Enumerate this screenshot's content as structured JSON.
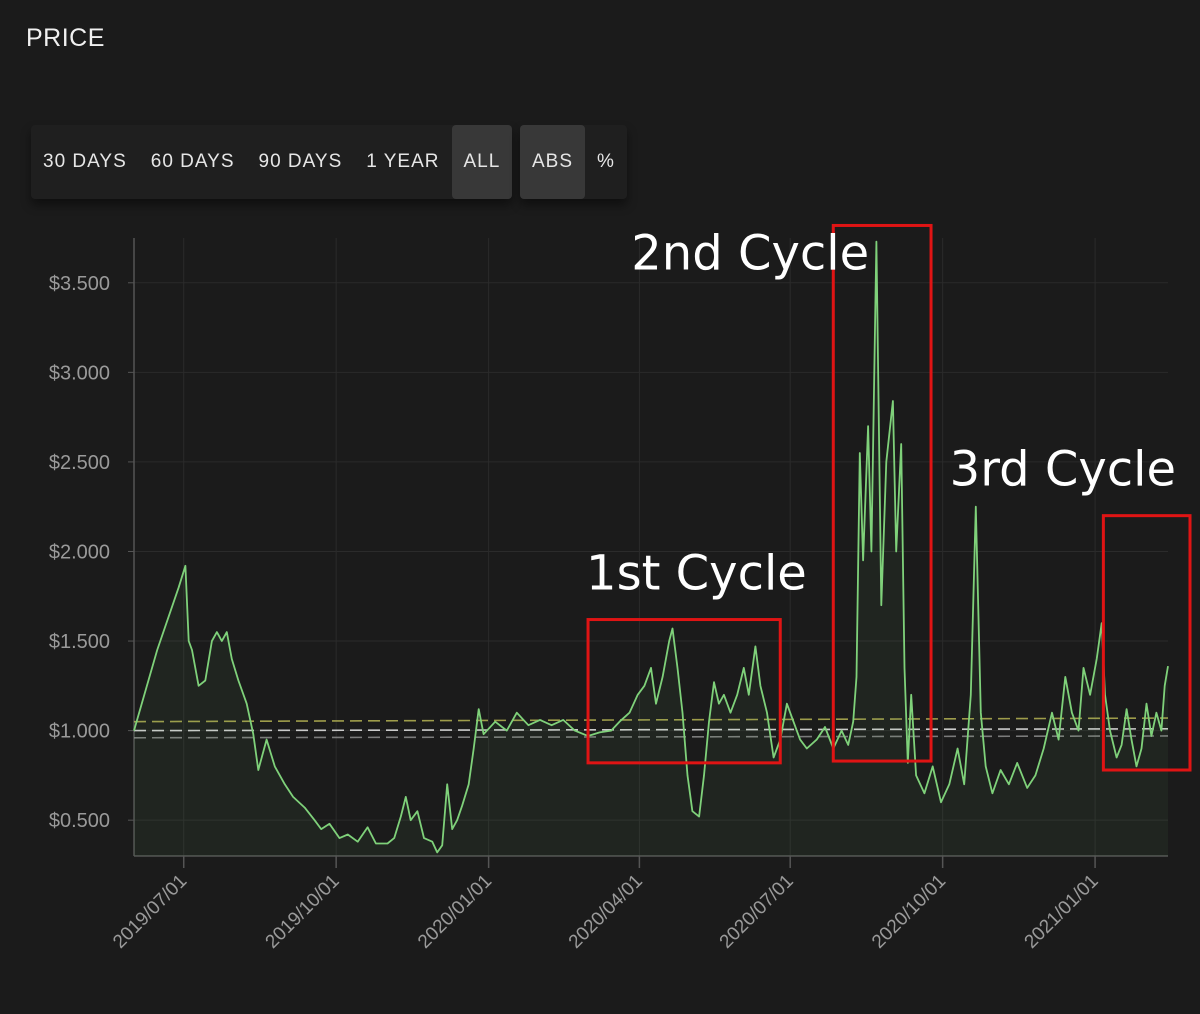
{
  "page": {
    "title": "PRICE"
  },
  "range_buttons": [
    {
      "label": "30 DAYS",
      "active": false
    },
    {
      "label": "60 DAYS",
      "active": false
    },
    {
      "label": "90 DAYS",
      "active": false
    },
    {
      "label": "1 YEAR",
      "active": false
    },
    {
      "label": "ALL",
      "active": true
    }
  ],
  "mode_buttons": [
    {
      "label": "ABS",
      "active": true
    },
    {
      "label": "%",
      "active": false
    }
  ],
  "colors": {
    "background": "#1b1b1b",
    "series": "#7fd17a",
    "annotation_box": "#e01414",
    "grid": "#2b2b2b",
    "axis": "#555555",
    "tick_text": "#9a9a9a",
    "ref_yellow": "#b5b353",
    "ref_white": "#e8e8e8",
    "ref_grey": "#8c8c8c"
  },
  "chart_data": {
    "type": "line",
    "title": "",
    "xlabel": "",
    "ylabel": "",
    "x_start": "2019-06-01",
    "x_end": "2021-02-14",
    "ylim": [
      0.3,
      3.75
    ],
    "y_ticks": [
      0.5,
      1.0,
      1.5,
      2.0,
      2.5,
      3.0,
      3.5
    ],
    "y_tick_labels": [
      "$0.500",
      "$1.000",
      "$1.500",
      "$2.000",
      "$2.500",
      "$3.000",
      "$3.500"
    ],
    "x_ticks": [
      "2019-07-01",
      "2019-10-01",
      "2020-01-01",
      "2020-04-01",
      "2020-07-01",
      "2020-10-01",
      "2021-01-01"
    ],
    "x_tick_labels": [
      "2019/07/01",
      "2019/10/01",
      "2020/01/01",
      "2020/04/01",
      "2020/07/01",
      "2020/10/01",
      "2021/01/01"
    ],
    "grid": true,
    "series": [
      {
        "points": [
          [
            "2019-06-01",
            1.0
          ],
          [
            "2019-06-15",
            1.45
          ],
          [
            "2019-06-28",
            1.8
          ],
          [
            "2019-07-02",
            1.92
          ],
          [
            "2019-07-04",
            1.5
          ],
          [
            "2019-07-06",
            1.45
          ],
          [
            "2019-07-10",
            1.25
          ],
          [
            "2019-07-14",
            1.28
          ],
          [
            "2019-07-18",
            1.5
          ],
          [
            "2019-07-21",
            1.55
          ],
          [
            "2019-07-24",
            1.5
          ],
          [
            "2019-07-27",
            1.55
          ],
          [
            "2019-07-30",
            1.4
          ],
          [
            "2019-08-03",
            1.28
          ],
          [
            "2019-08-08",
            1.15
          ],
          [
            "2019-08-12",
            0.98
          ],
          [
            "2019-08-15",
            0.78
          ],
          [
            "2019-08-20",
            0.95
          ],
          [
            "2019-08-25",
            0.8
          ],
          [
            "2019-08-31",
            0.7
          ],
          [
            "2019-09-05",
            0.63
          ],
          [
            "2019-09-12",
            0.57
          ],
          [
            "2019-09-18",
            0.5
          ],
          [
            "2019-09-22",
            0.45
          ],
          [
            "2019-09-27",
            0.48
          ],
          [
            "2019-10-03",
            0.4
          ],
          [
            "2019-10-08",
            0.42
          ],
          [
            "2019-10-14",
            0.38
          ],
          [
            "2019-10-20",
            0.46
          ],
          [
            "2019-10-25",
            0.37
          ],
          [
            "2019-11-01",
            0.37
          ],
          [
            "2019-11-05",
            0.4
          ],
          [
            "2019-11-09",
            0.52
          ],
          [
            "2019-11-12",
            0.63
          ],
          [
            "2019-11-15",
            0.5
          ],
          [
            "2019-11-19",
            0.55
          ],
          [
            "2019-11-23",
            0.4
          ],
          [
            "2019-11-28",
            0.38
          ],
          [
            "2019-12-01",
            0.32
          ],
          [
            "2019-12-04",
            0.36
          ],
          [
            "2019-12-07",
            0.7
          ],
          [
            "2019-12-10",
            0.45
          ],
          [
            "2019-12-13",
            0.5
          ],
          [
            "2019-12-16",
            0.58
          ],
          [
            "2019-12-20",
            0.7
          ],
          [
            "2019-12-23",
            0.9
          ],
          [
            "2019-12-26",
            1.12
          ],
          [
            "2019-12-29",
            0.98
          ],
          [
            "2020-01-05",
            1.05
          ],
          [
            "2020-01-12",
            1.0
          ],
          [
            "2020-01-18",
            1.1
          ],
          [
            "2020-01-25",
            1.03
          ],
          [
            "2020-02-01",
            1.06
          ],
          [
            "2020-02-08",
            1.03
          ],
          [
            "2020-02-15",
            1.06
          ],
          [
            "2020-02-22",
            1.0
          ],
          [
            "2020-03-01",
            0.97
          ],
          [
            "2020-03-08",
            0.99
          ],
          [
            "2020-03-15",
            1.0
          ],
          [
            "2020-03-20",
            1.05
          ],
          [
            "2020-03-26",
            1.1
          ],
          [
            "2020-03-31",
            1.2
          ],
          [
            "2020-04-04",
            1.25
          ],
          [
            "2020-04-08",
            1.35
          ],
          [
            "2020-04-11",
            1.15
          ],
          [
            "2020-04-15",
            1.3
          ],
          [
            "2020-04-19",
            1.5
          ],
          [
            "2020-04-21",
            1.57
          ],
          [
            "2020-04-24",
            1.35
          ],
          [
            "2020-04-27",
            1.1
          ],
          [
            "2020-04-30",
            0.75
          ],
          [
            "2020-05-03",
            0.55
          ],
          [
            "2020-05-07",
            0.52
          ],
          [
            "2020-05-10",
            0.75
          ],
          [
            "2020-05-13",
            1.05
          ],
          [
            "2020-05-16",
            1.27
          ],
          [
            "2020-05-19",
            1.15
          ],
          [
            "2020-05-22",
            1.2
          ],
          [
            "2020-05-26",
            1.1
          ],
          [
            "2020-05-30",
            1.2
          ],
          [
            "2020-06-03",
            1.35
          ],
          [
            "2020-06-06",
            1.2
          ],
          [
            "2020-06-10",
            1.47
          ],
          [
            "2020-06-13",
            1.25
          ],
          [
            "2020-06-17",
            1.1
          ],
          [
            "2020-06-21",
            0.85
          ],
          [
            "2020-06-25",
            0.95
          ],
          [
            "2020-06-29",
            1.15
          ],
          [
            "2020-07-03",
            1.05
          ],
          [
            "2020-07-07",
            0.95
          ],
          [
            "2020-07-11",
            0.9
          ],
          [
            "2020-07-17",
            0.95
          ],
          [
            "2020-07-22",
            1.02
          ],
          [
            "2020-07-27",
            0.9
          ],
          [
            "2020-08-01",
            1.0
          ],
          [
            "2020-08-05",
            0.92
          ],
          [
            "2020-08-08",
            1.05
          ],
          [
            "2020-08-10",
            1.3
          ],
          [
            "2020-08-12",
            2.55
          ],
          [
            "2020-08-14",
            1.95
          ],
          [
            "2020-08-17",
            2.7
          ],
          [
            "2020-08-19",
            2.0
          ],
          [
            "2020-08-22",
            3.73
          ],
          [
            "2020-08-25",
            1.7
          ],
          [
            "2020-08-28",
            2.5
          ],
          [
            "2020-09-01",
            2.84
          ],
          [
            "2020-09-03",
            2.0
          ],
          [
            "2020-09-06",
            2.6
          ],
          [
            "2020-09-08",
            1.35
          ],
          [
            "2020-09-10",
            0.82
          ],
          [
            "2020-09-12",
            1.2
          ],
          [
            "2020-09-15",
            0.75
          ],
          [
            "2020-09-20",
            0.65
          ],
          [
            "2020-09-25",
            0.8
          ],
          [
            "2020-09-30",
            0.6
          ],
          [
            "2020-10-05",
            0.7
          ],
          [
            "2020-10-10",
            0.9
          ],
          [
            "2020-10-14",
            0.7
          ],
          [
            "2020-10-18",
            1.2
          ],
          [
            "2020-10-21",
            2.25
          ],
          [
            "2020-10-24",
            1.1
          ],
          [
            "2020-10-27",
            0.8
          ],
          [
            "2020-10-31",
            0.65
          ],
          [
            "2020-11-05",
            0.78
          ],
          [
            "2020-11-10",
            0.7
          ],
          [
            "2020-11-15",
            0.82
          ],
          [
            "2020-11-21",
            0.68
          ],
          [
            "2020-11-26",
            0.75
          ],
          [
            "2020-12-01",
            0.9
          ],
          [
            "2020-12-06",
            1.1
          ],
          [
            "2020-12-10",
            0.95
          ],
          [
            "2020-12-14",
            1.3
          ],
          [
            "2020-12-18",
            1.1
          ],
          [
            "2020-12-22",
            1.0
          ],
          [
            "2020-12-25",
            1.35
          ],
          [
            "2020-12-29",
            1.2
          ],
          [
            "2021-01-02",
            1.4
          ],
          [
            "2021-01-05",
            1.6
          ],
          [
            "2021-01-07",
            1.2
          ],
          [
            "2021-01-10",
            1.0
          ],
          [
            "2021-01-14",
            0.85
          ],
          [
            "2021-01-17",
            0.92
          ],
          [
            "2021-01-20",
            1.12
          ],
          [
            "2021-01-23",
            0.95
          ],
          [
            "2021-01-26",
            0.8
          ],
          [
            "2021-01-29",
            0.9
          ],
          [
            "2021-02-01",
            1.15
          ],
          [
            "2021-02-04",
            0.97
          ],
          [
            "2021-02-07",
            1.1
          ],
          [
            "2021-02-10",
            1.0
          ],
          [
            "2021-02-12",
            1.25
          ],
          [
            "2021-02-14",
            1.36
          ]
        ]
      }
    ],
    "reference_lines": [
      {
        "color": "yellow",
        "y_start": 1.05,
        "y_end": 1.07
      },
      {
        "color": "white",
        "y_start": 1.0,
        "y_end": 1.01
      },
      {
        "color": "grey",
        "y_start": 0.96,
        "y_end": 0.97
      }
    ],
    "annotations": [
      {
        "label": "1st Cycle",
        "x_start": "2020-03-01",
        "x_end": "2020-06-25",
        "y_low": 0.82,
        "y_high": 1.62
      },
      {
        "label": "2nd Cycle",
        "x_start": "2020-07-27",
        "x_end": "2020-09-24",
        "y_low": 0.83,
        "y_high": 3.82
      },
      {
        "label": "3rd Cycle",
        "x_start": "2021-01-06",
        "x_end": "2021-02-28",
        "y_low": 0.78,
        "y_high": 2.2
      }
    ]
  }
}
